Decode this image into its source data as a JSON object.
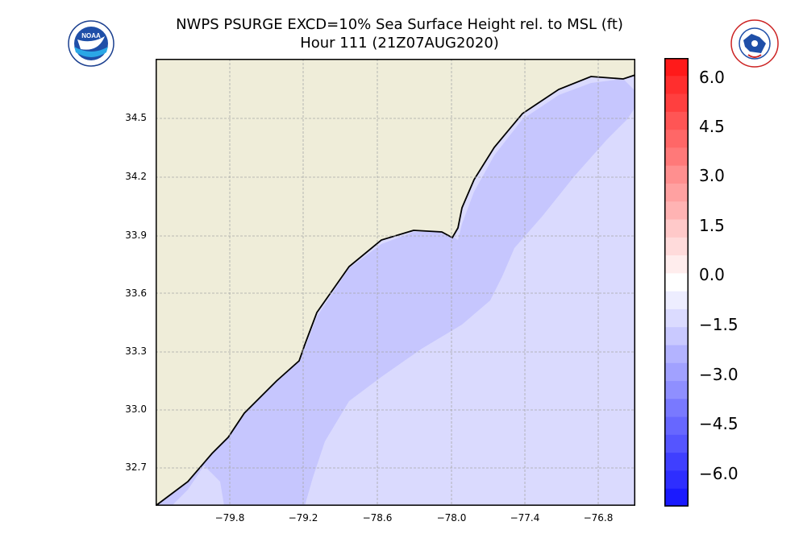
{
  "header": {
    "title_line1": "NWPS PSURGE EXCD=10% Sea Surface Height rel. to MSL (ft)",
    "title_line2": "Hour 111 (21Z07AUG2020)",
    "left_logo": "NOAA",
    "right_logo": "NATIONAL WEATHER SERVICE"
  },
  "map": {
    "y_ticks": [
      "34.5",
      "34.2",
      "33.9",
      "33.6",
      "33.3",
      "33.0",
      "32.7"
    ],
    "x_ticks": [
      "−79.8",
      "−79.2",
      "−78.6",
      "−78.0",
      "−77.4",
      "−76.8"
    ],
    "colors": {
      "land": "#efedd9",
      "water_outer": "#dadafe",
      "water_inner": "#c6c6fe"
    }
  },
  "colorbar": {
    "labels": [
      "6.0",
      "4.5",
      "3.0",
      "1.5",
      "0.0",
      "−1.5",
      "−3.0",
      "−4.5",
      "−6.0"
    ],
    "colors_top_to_bottom": [
      "#ff1a1a",
      "#ff2e2e",
      "#ff3f3f",
      "#ff5555",
      "#ff6767",
      "#ff7979",
      "#ff8f8f",
      "#ffa1a1",
      "#ffb3b3",
      "#ffc9c9",
      "#ffdbdb",
      "#ffeded",
      "#ffffff",
      "#ededff",
      "#dbdbff",
      "#c9c9ff",
      "#b3b3ff",
      "#a1a1ff",
      "#8f8fff",
      "#7979ff",
      "#6767ff",
      "#5555ff",
      "#3f3fff",
      "#2e2eff",
      "#1a1aff"
    ]
  }
}
